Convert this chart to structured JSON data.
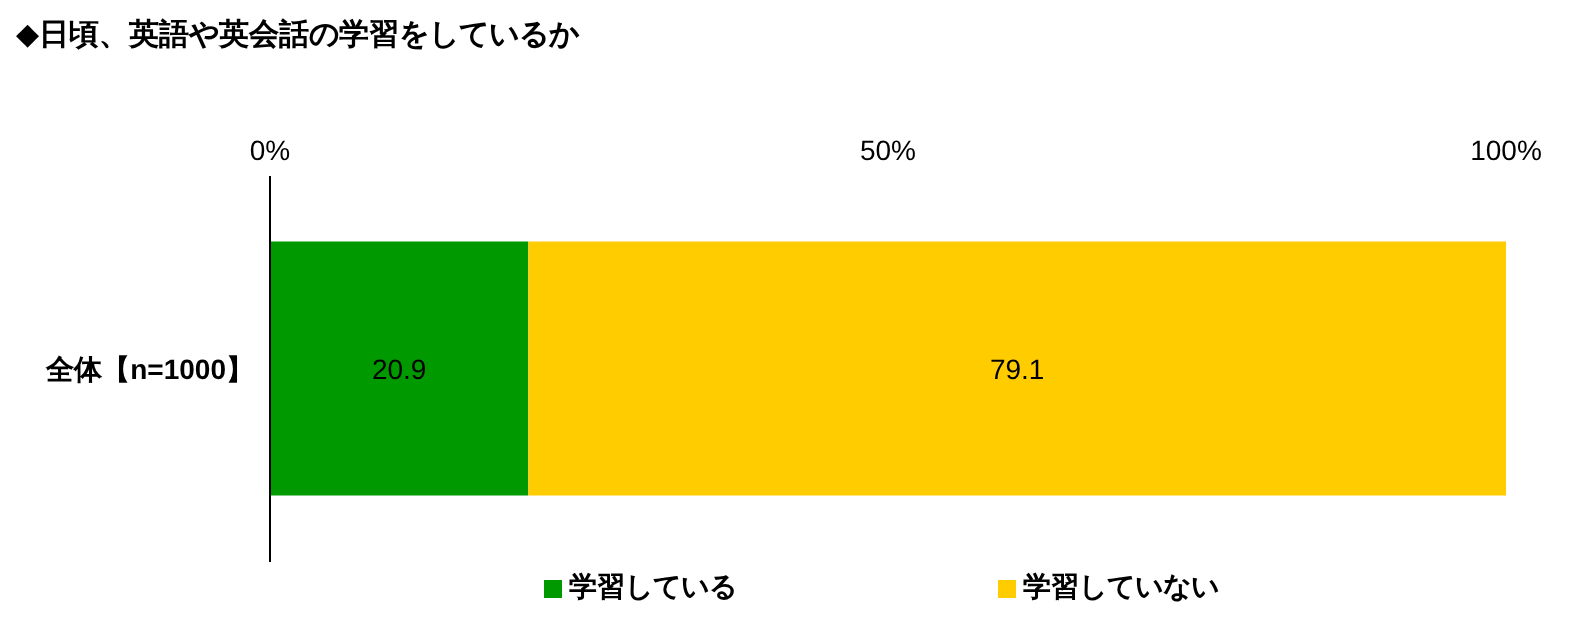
{
  "chart_data": {
    "type": "bar",
    "orientation": "horizontal",
    "stacked": true,
    "title": "◆日頃、英語や英会話の学習をしているか",
    "categories": [
      "全体【n=1000】"
    ],
    "series": [
      {
        "name": "学習している",
        "color": "#009900",
        "values": [
          20.9
        ]
      },
      {
        "name": "学習していない",
        "color": "#ffcc00",
        "values": [
          79.1
        ]
      }
    ],
    "xlim": [
      0,
      100
    ],
    "xticks": [
      {
        "value": 0,
        "label": "0%"
      },
      {
        "value": 50,
        "label": "50%"
      },
      {
        "value": 100,
        "label": "100%"
      }
    ],
    "data_labels": true,
    "legend": "bottom",
    "grid": false
  }
}
